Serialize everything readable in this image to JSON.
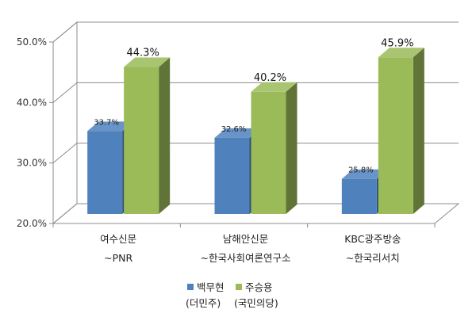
{
  "chart_data": {
    "type": "bar",
    "categories": [
      [
        "여수신문",
        "~PNR"
      ],
      [
        "남해안신문",
        "~한국사회여론연구소"
      ],
      [
        "KBC광주방송",
        "~한국리서치"
      ]
    ],
    "series": [
      {
        "name": [
          "백무현",
          "(더민주)"
        ],
        "color": "#4f81bd",
        "values": [
          33.7,
          32.6,
          25.8
        ],
        "labels": [
          "33.7%",
          "32.6%",
          "25.8%"
        ]
      },
      {
        "name": [
          "주승용",
          "(국민의당)"
        ],
        "color": "#9bbb59",
        "values": [
          44.3,
          40.2,
          45.9
        ],
        "labels": [
          "44.3%",
          "40.2%",
          "45.9%"
        ]
      }
    ],
    "yticks": [
      "20.0%",
      "30.0%",
      "40.0%",
      "50.0%"
    ],
    "ylim": [
      20,
      50
    ],
    "grid": true,
    "legend_position": "bottom",
    "title": "",
    "xlabel": "",
    "ylabel": ""
  }
}
